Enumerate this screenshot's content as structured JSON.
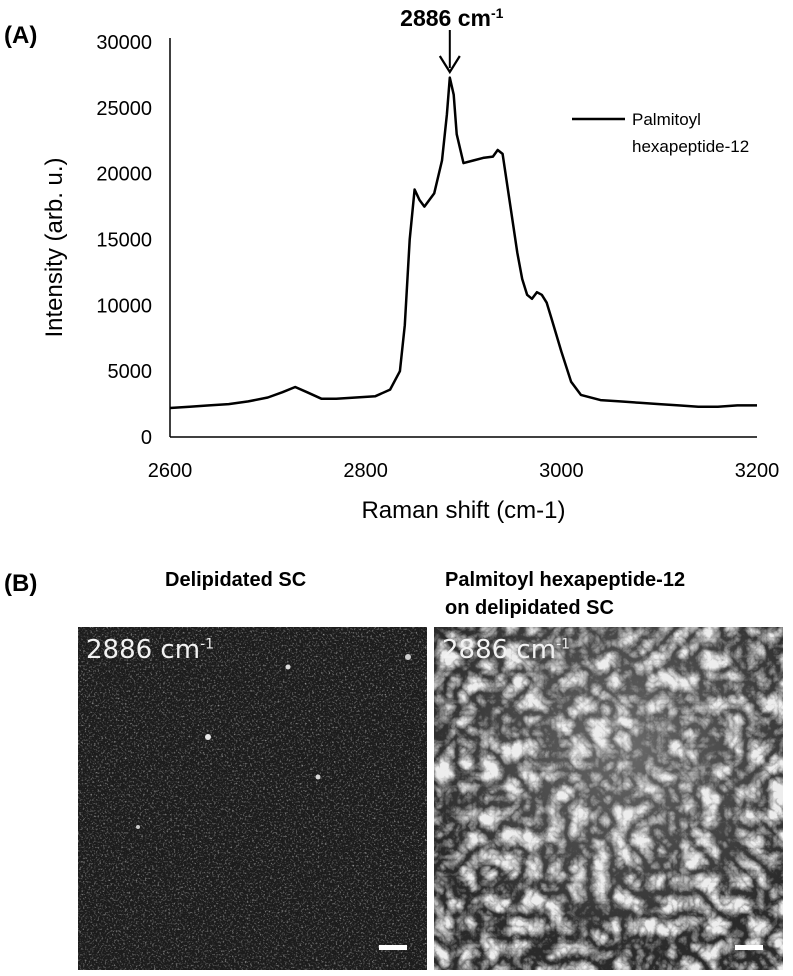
{
  "panel_a_label": "(A)",
  "panel_b_label": "(B)",
  "chart_data": {
    "type": "line",
    "xlabel": "Raman shift (cm-1)",
    "ylabel": "Intensity (arb. u.)",
    "xlim": [
      2600,
      3200
    ],
    "ylim": [
      0,
      30000
    ],
    "x_ticks": [
      "2600",
      "2800",
      "3000",
      "3200"
    ],
    "y_ticks": [
      "0",
      "5000",
      "10000",
      "15000",
      "20000",
      "25000",
      "30000"
    ],
    "legend_position": "top-right",
    "grid": false,
    "annotation": {
      "text_main": "2886 cm",
      "text_sup": "-1",
      "x": 2886
    },
    "series": [
      {
        "name": "Palmitoyl hexapeptide-12",
        "legend_lines": [
          "Palmitoyl",
          "hexapeptide-12"
        ],
        "color": "#000000",
        "x": [
          2600,
          2620,
          2640,
          2660,
          2680,
          2700,
          2715,
          2728,
          2740,
          2755,
          2770,
          2790,
          2810,
          2825,
          2835,
          2840,
          2845,
          2850,
          2855,
          2860,
          2870,
          2878,
          2883,
          2886,
          2890,
          2893,
          2900,
          2910,
          2920,
          2930,
          2935,
          2940,
          2945,
          2950,
          2955,
          2960,
          2965,
          2970,
          2975,
          2980,
          2985,
          2990,
          3000,
          3010,
          3020,
          3040,
          3060,
          3080,
          3100,
          3120,
          3140,
          3160,
          3180,
          3200
        ],
        "y": [
          2200,
          2300,
          2400,
          2500,
          2700,
          3000,
          3400,
          3800,
          3400,
          2900,
          2900,
          3000,
          3100,
          3600,
          5000,
          8500,
          15000,
          18800,
          18000,
          17500,
          18500,
          21000,
          24500,
          27300,
          26000,
          23000,
          20800,
          21000,
          21200,
          21300,
          21800,
          21500,
          19000,
          16500,
          14000,
          12000,
          10800,
          10500,
          11000,
          10800,
          10200,
          9000,
          6500,
          4200,
          3200,
          2800,
          2700,
          2600,
          2500,
          2400,
          2300,
          2300,
          2400,
          2400
        ]
      }
    ]
  },
  "images": [
    {
      "title_lines": [
        "Delipidated SC"
      ],
      "tag_main": "2886 cm",
      "tag_sup": "-1"
    },
    {
      "title_lines": [
        "Palmitoyl hexapeptide-12",
        "on delipidated SC"
      ],
      "tag_main": "2886 cm",
      "tag_sup": "-1"
    }
  ]
}
